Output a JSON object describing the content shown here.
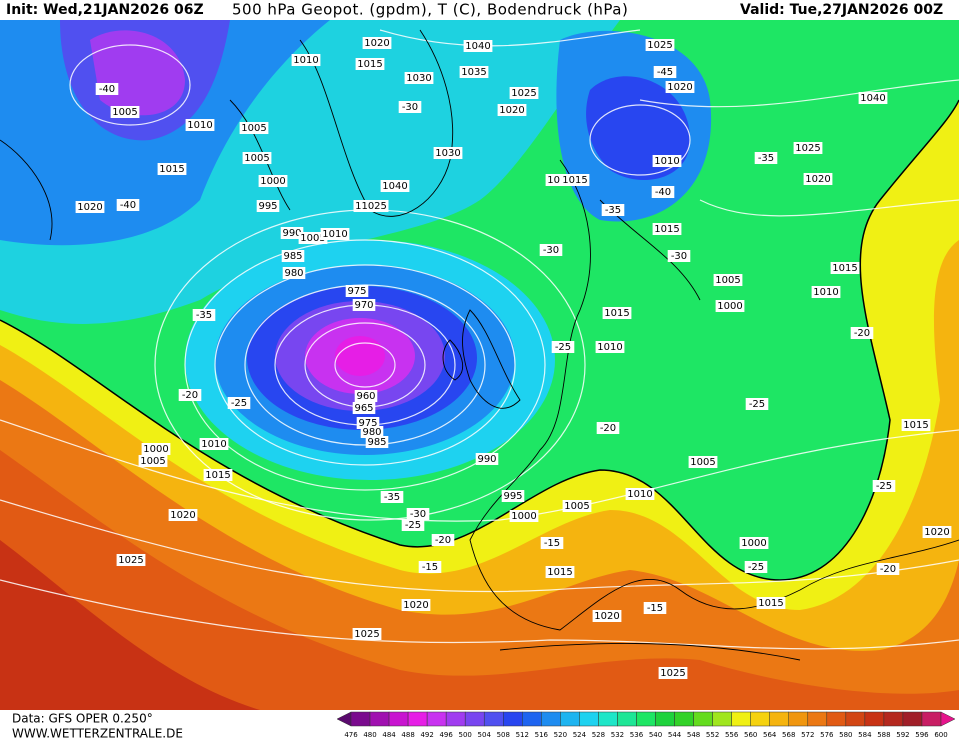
{
  "header": {
    "init": "Init: Wed,21JAN2026 06Z",
    "title": "500 hPa Geopot. (gpdm), T (C), Bodendruck (hPa)",
    "valid": "Valid: Tue,27JAN2026 00Z"
  },
  "footer": {
    "source": "Data: GFS OPER 0.250°",
    "site": "WWW.WETTERZENTRALE.DE"
  },
  "colorbar": {
    "levels": [
      476,
      480,
      484,
      488,
      492,
      496,
      500,
      504,
      508,
      512,
      516,
      520,
      524,
      528,
      532,
      536,
      540,
      544,
      548,
      552,
      556,
      560,
      564,
      568,
      572,
      576,
      580,
      584,
      588,
      592,
      596,
      600
    ]
  },
  "map": {
    "labels": [
      "1020",
      "1040",
      "1025",
      "1010",
      "1015",
      "1030",
      "1035",
      "-45",
      "-40",
      "1005",
      "1025",
      "1020",
      "1040",
      "1010",
      "1005",
      "1020",
      "-30",
      "1030",
      "1005",
      "1010",
      "-35",
      "1025",
      "1015",
      "1000",
      "1040",
      "1010",
      "1015",
      "1020",
      "-40",
      "1020",
      "-40",
      "995",
      "11025",
      "-35",
      "1015",
      "990",
      "1005",
      "1010",
      "-30",
      "-30",
      "985",
      "980",
      "1005",
      "975",
      "970",
      "1015",
      "1010",
      "1000",
      "-35",
      "1015",
      "-20",
      "-25",
      "1010",
      "-20",
      "-25",
      "960",
      "965",
      "975",
      "980",
      "985",
      "1000",
      "1010",
      "1005",
      "-20",
      "-25",
      "1015",
      "990",
      "1005",
      "1015",
      "995",
      "1010",
      "-35",
      "-25",
      "1005",
      "1020",
      "1000",
      "-30",
      "-25",
      "1000",
      "-20",
      "-15",
      "1020",
      "1025",
      "-15",
      "1015",
      "-25",
      "-20",
      "1020",
      "1015",
      "-15",
      "1020",
      "1025",
      "1025"
    ]
  }
}
